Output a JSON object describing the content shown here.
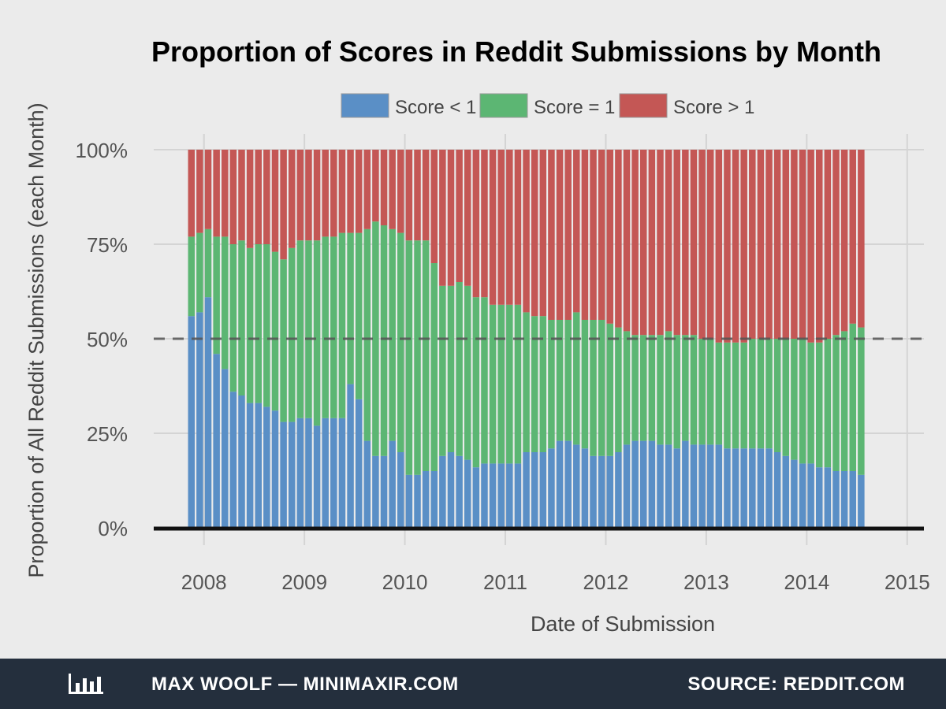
{
  "colors": {
    "score_lt_1": "#5a8fc6",
    "score_eq_1": "#5cb673",
    "score_gt_1": "#c45755",
    "background": "#ebebeb",
    "footer_bg": "#242f3d"
  },
  "footer": {
    "logo_icon": "bar-chart-icon",
    "credit": "MAX WOOLF — MINIMAXIR.COM",
    "source": "SOURCE: REDDIT.COM"
  },
  "chart_data": {
    "type": "bar",
    "stacked": true,
    "title": "Proportion of Scores in Reddit Submissions by Month",
    "xlabel": "Date of Submission",
    "ylabel": "Proportion of All Reddit Submissions (each Month)",
    "ylim": [
      0,
      1
    ],
    "yticks": [
      0,
      0.25,
      0.5,
      0.75,
      1
    ],
    "ytick_labels": [
      "0%",
      "25%",
      "50%",
      "75%",
      "100%"
    ],
    "xlim": [
      "2007-07",
      "2015-03"
    ],
    "xticks": [
      "2008",
      "2009",
      "2010",
      "2011",
      "2012",
      "2013",
      "2014",
      "2015"
    ],
    "reference_line": {
      "y": 0.5,
      "style": "dashed"
    },
    "grid": true,
    "legend": {
      "position": "top-center",
      "entries": [
        "Score < 1",
        "Score = 1",
        "Score > 1"
      ]
    },
    "x_start": "2007-11",
    "series": [
      {
        "name": "Score < 1",
        "values": [
          0.56,
          0.57,
          0.61,
          0.46,
          0.42,
          0.36,
          0.35,
          0.33,
          0.33,
          0.32,
          0.31,
          0.28,
          0.28,
          0.29,
          0.29,
          0.27,
          0.29,
          0.29,
          0.29,
          0.38,
          0.34,
          0.23,
          0.19,
          0.19,
          0.23,
          0.2,
          0.14,
          0.14,
          0.15,
          0.15,
          0.19,
          0.2,
          0.19,
          0.18,
          0.16,
          0.17,
          0.17,
          0.17,
          0.17,
          0.17,
          0.2,
          0.2,
          0.2,
          0.21,
          0.23,
          0.23,
          0.22,
          0.21,
          0.19,
          0.19,
          0.19,
          0.2,
          0.22,
          0.23,
          0.23,
          0.23,
          0.22,
          0.22,
          0.21,
          0.23,
          0.22,
          0.22,
          0.22,
          0.22,
          0.21,
          0.21,
          0.21,
          0.21,
          0.21,
          0.21,
          0.2,
          0.19,
          0.18,
          0.17,
          0.17,
          0.16,
          0.16,
          0.15,
          0.15,
          0.15,
          0.14
        ]
      },
      {
        "name": "Score = 1",
        "values": [
          0.21,
          0.21,
          0.18,
          0.31,
          0.35,
          0.39,
          0.41,
          0.41,
          0.42,
          0.43,
          0.42,
          0.43,
          0.46,
          0.47,
          0.47,
          0.49,
          0.48,
          0.48,
          0.49,
          0.4,
          0.44,
          0.56,
          0.62,
          0.61,
          0.56,
          0.58,
          0.62,
          0.62,
          0.61,
          0.55,
          0.45,
          0.44,
          0.46,
          0.46,
          0.45,
          0.44,
          0.42,
          0.42,
          0.42,
          0.42,
          0.37,
          0.36,
          0.36,
          0.34,
          0.32,
          0.32,
          0.35,
          0.34,
          0.36,
          0.36,
          0.35,
          0.33,
          0.3,
          0.28,
          0.28,
          0.28,
          0.29,
          0.3,
          0.3,
          0.28,
          0.29,
          0.28,
          0.28,
          0.27,
          0.28,
          0.28,
          0.28,
          0.29,
          0.29,
          0.29,
          0.3,
          0.31,
          0.32,
          0.33,
          0.32,
          0.33,
          0.34,
          0.36,
          0.37,
          0.39,
          0.39
        ]
      },
      {
        "name": "Score > 1",
        "values": [
          0.23,
          0.22,
          0.21,
          0.23,
          0.23,
          0.25,
          0.24,
          0.26,
          0.25,
          0.25,
          0.27,
          0.29,
          0.26,
          0.24,
          0.24,
          0.24,
          0.23,
          0.23,
          0.22,
          0.22,
          0.22,
          0.21,
          0.19,
          0.2,
          0.21,
          0.22,
          0.24,
          0.24,
          0.24,
          0.3,
          0.36,
          0.36,
          0.35,
          0.36,
          0.39,
          0.39,
          0.41,
          0.41,
          0.41,
          0.41,
          0.43,
          0.44,
          0.44,
          0.45,
          0.45,
          0.45,
          0.43,
          0.45,
          0.45,
          0.45,
          0.46,
          0.47,
          0.48,
          0.49,
          0.49,
          0.49,
          0.49,
          0.48,
          0.49,
          0.49,
          0.49,
          0.5,
          0.5,
          0.51,
          0.51,
          0.51,
          0.51,
          0.5,
          0.5,
          0.5,
          0.5,
          0.5,
          0.5,
          0.5,
          0.51,
          0.51,
          0.5,
          0.49,
          0.48,
          0.46,
          0.47
        ]
      }
    ]
  }
}
